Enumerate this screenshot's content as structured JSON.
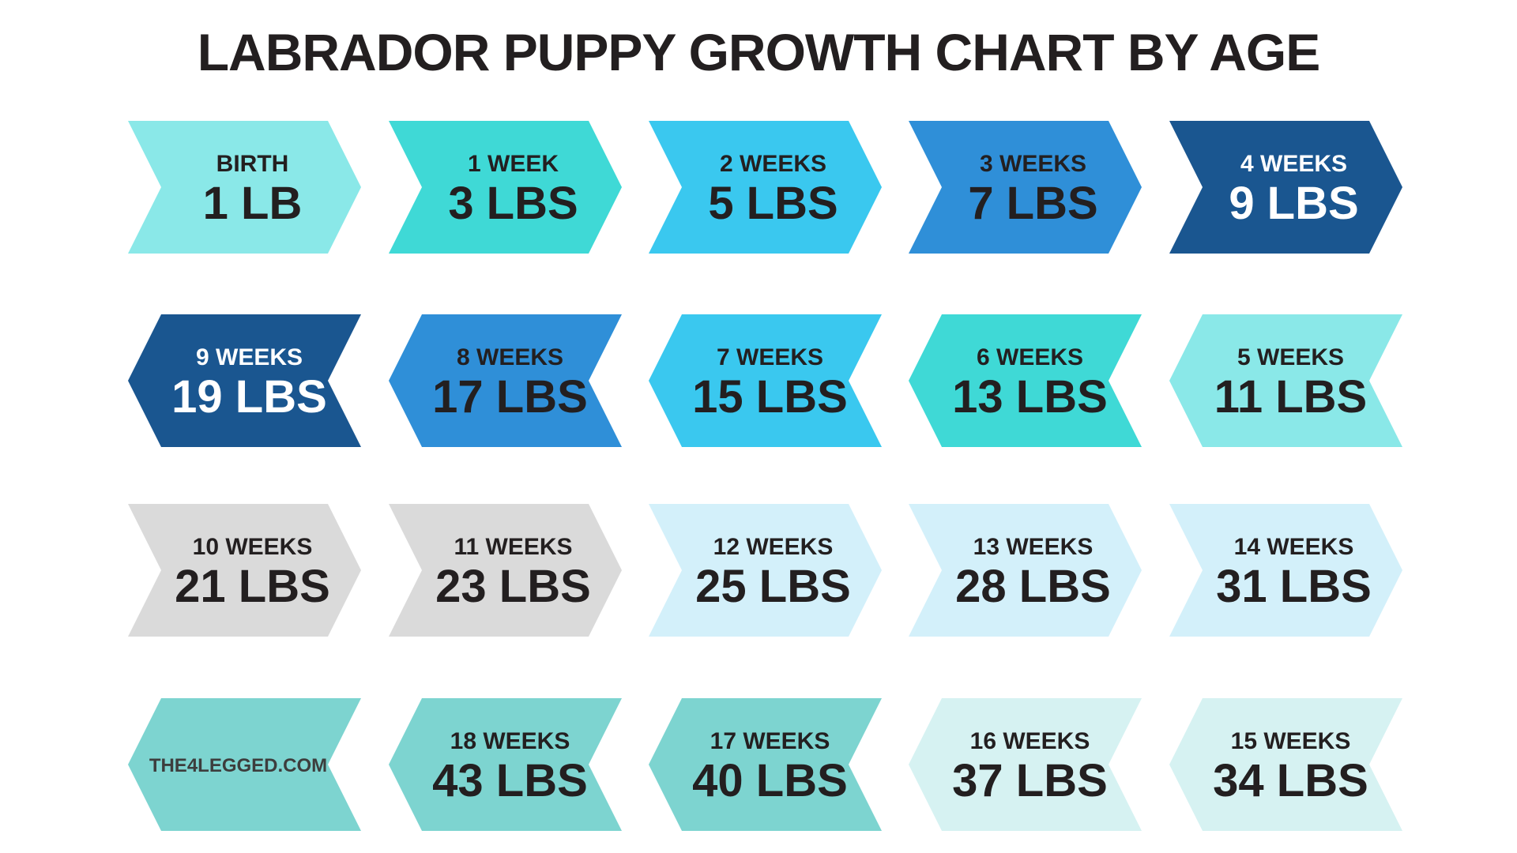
{
  "title": "LABRADOR PUPPY GROWTH CHART BY AGE",
  "chart_data": {
    "type": "table",
    "title": "LABRADOR PUPPY GROWTH CHART BY AGE",
    "rows": [
      [
        {
          "age": "BIRTH",
          "weight": "1 LB",
          "weight_lbs": 1,
          "fill": "#8ae8e8",
          "text": "#231f20",
          "dir": "right"
        },
        {
          "age": "1 WEEK",
          "weight": "3 LBS",
          "weight_lbs": 3,
          "fill": "#3fd9d6",
          "text": "#231f20",
          "dir": "right"
        },
        {
          "age": "2 WEEKS",
          "weight": "5 LBS",
          "weight_lbs": 5,
          "fill": "#3ac8ef",
          "text": "#231f20",
          "dir": "right"
        },
        {
          "age": "3 WEEKS",
          "weight": "7 LBS",
          "weight_lbs": 7,
          "fill": "#2f8fd8",
          "text": "#231f20",
          "dir": "right"
        },
        {
          "age": "4 WEEKS",
          "weight": "9 LBS",
          "weight_lbs": 9,
          "fill": "#1a5690",
          "text": "#ffffff",
          "dir": "right"
        }
      ],
      [
        {
          "age": "9 WEEKS",
          "weight": "19 LBS",
          "weight_lbs": 19,
          "fill": "#1a5690",
          "text": "#ffffff",
          "dir": "left"
        },
        {
          "age": "8 WEEKS",
          "weight": "17 LBS",
          "weight_lbs": 17,
          "fill": "#2f8fd8",
          "text": "#231f20",
          "dir": "left"
        },
        {
          "age": "7 WEEKS",
          "weight": "15 LBS",
          "weight_lbs": 15,
          "fill": "#3ac8ef",
          "text": "#231f20",
          "dir": "left"
        },
        {
          "age": "6 WEEKS",
          "weight": "13 LBS",
          "weight_lbs": 13,
          "fill": "#3fd9d6",
          "text": "#231f20",
          "dir": "left"
        },
        {
          "age": "5 WEEKS",
          "weight": "11 LBS",
          "weight_lbs": 11,
          "fill": "#8ae8e8",
          "text": "#231f20",
          "dir": "left"
        }
      ],
      [
        {
          "age": "10 WEEKS",
          "weight": "21 LBS",
          "weight_lbs": 21,
          "fill": "#dadada",
          "text": "#231f20",
          "dir": "right"
        },
        {
          "age": "11 WEEKS",
          "weight": "23 LBS",
          "weight_lbs": 23,
          "fill": "#dadada",
          "text": "#231f20",
          "dir": "right"
        },
        {
          "age": "12 WEEKS",
          "weight": "25 LBS",
          "weight_lbs": 25,
          "fill": "#d3f0fa",
          "text": "#231f20",
          "dir": "right"
        },
        {
          "age": "13 WEEKS",
          "weight": "28 LBS",
          "weight_lbs": 28,
          "fill": "#d3f0fa",
          "text": "#231f20",
          "dir": "right"
        },
        {
          "age": "14 WEEKS",
          "weight": "31 LBS",
          "weight_lbs": 31,
          "fill": "#d3f0fa",
          "text": "#231f20",
          "dir": "right"
        }
      ],
      [
        {
          "site": "THE4LEGGED.COM",
          "fill": "#7dd4d0",
          "text": "#3d3d3d",
          "dir": "left"
        },
        {
          "age": "18 WEEKS",
          "weight": "43 LBS",
          "weight_lbs": 43,
          "fill": "#7dd4d0",
          "text": "#231f20",
          "dir": "left"
        },
        {
          "age": "17 WEEKS",
          "weight": "40 LBS",
          "weight_lbs": 40,
          "fill": "#7dd4d0",
          "text": "#231f20",
          "dir": "left"
        },
        {
          "age": "16 WEEKS",
          "weight": "37 LBS",
          "weight_lbs": 37,
          "fill": "#d6f2f2",
          "text": "#231f20",
          "dir": "left"
        },
        {
          "age": "15 WEEKS",
          "weight": "34 LBS",
          "weight_lbs": 34,
          "fill": "#d6f2f2",
          "text": "#231f20",
          "dir": "left"
        }
      ]
    ]
  }
}
